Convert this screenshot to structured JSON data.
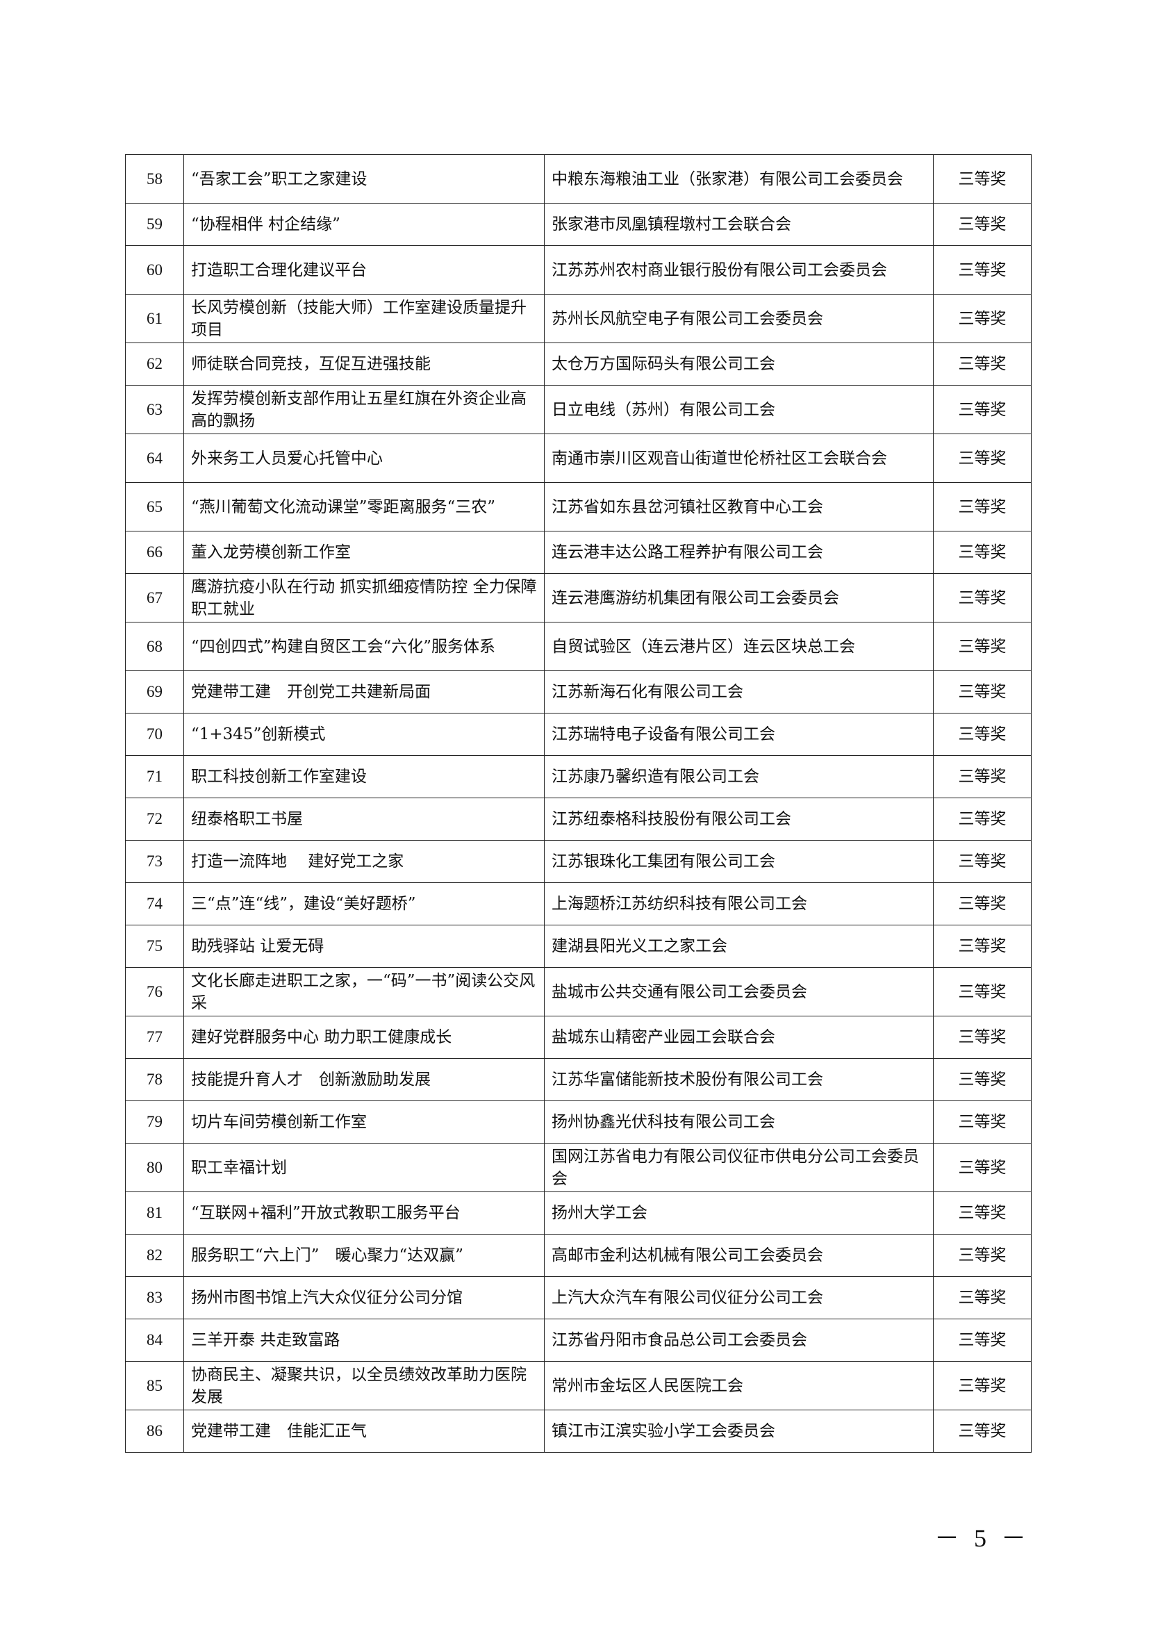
{
  "table": {
    "rows": [
      {
        "no": "58",
        "project": "“吾家工会”职工之家建设",
        "unit": "中粮东海粮油工业（张家港）有限公司工会委员会",
        "award": "三等奖",
        "lines": 2
      },
      {
        "no": "59",
        "project": "“协程相伴 村企结缘”",
        "unit": "张家港市凤凰镇程墩村工会联合会",
        "award": "三等奖",
        "lines": 1
      },
      {
        "no": "60",
        "project": "打造职工合理化建议平台",
        "unit": "江苏苏州农村商业银行股份有限公司工会委员会",
        "award": "三等奖",
        "lines": 2
      },
      {
        "no": "61",
        "project": "长风劳模创新（技能大师）工作室建设质量提升项目",
        "unit": "苏州长风航空电子有限公司工会委员会",
        "award": "三等奖",
        "lines": 2
      },
      {
        "no": "62",
        "project": "师徒联合同竞技，互促互进强技能",
        "unit": "太仓万方国际码头有限公司工会",
        "award": "三等奖",
        "lines": 1
      },
      {
        "no": "63",
        "project": "发挥劳模创新支部作用让五星红旗在外资企业高高的飘扬",
        "unit": "日立电线（苏州）有限公司工会",
        "award": "三等奖",
        "lines": 2
      },
      {
        "no": "64",
        "project": "外来务工人员爱心托管中心",
        "unit": "南通市崇川区观音山街道世伦桥社区工会联合会",
        "award": "三等奖",
        "lines": 2
      },
      {
        "no": "65",
        "project": "“燕川葡萄文化流动课堂”零距离服务“三农”",
        "unit": "江苏省如东县岔河镇社区教育中心工会",
        "award": "三等奖",
        "lines": 2
      },
      {
        "no": "66",
        "project": "董入龙劳模创新工作室",
        "unit": "连云港丰达公路工程养护有限公司工会",
        "award": "三等奖",
        "lines": 1
      },
      {
        "no": "67",
        "project": "鹰游抗疫小队在行动 抓实抓细疫情防控 全力保障职工就业",
        "unit": "连云港鹰游纺机集团有限公司工会委员会",
        "award": "三等奖",
        "lines": 2
      },
      {
        "no": "68",
        "project": "“四创四式”构建自贸区工会“六化”服务体系",
        "unit": "自贸试验区（连云港片区）连云区块总工会",
        "award": "三等奖",
        "lines": 2
      },
      {
        "no": "69",
        "project": "党建带工建　开创党工共建新局面",
        "unit": "江苏新海石化有限公司工会",
        "award": "三等奖",
        "lines": 1
      },
      {
        "no": "70",
        "project": "“1+345”创新模式",
        "unit": "江苏瑞特电子设备有限公司工会",
        "award": "三等奖",
        "lines": 1
      },
      {
        "no": "71",
        "project": "职工科技创新工作室建设",
        "unit": "江苏康乃馨织造有限公司工会",
        "award": "三等奖",
        "lines": 1
      },
      {
        "no": "72",
        "project": "纽泰格职工书屋",
        "unit": "江苏纽泰格科技股份有限公司工会",
        "award": "三等奖",
        "lines": 1
      },
      {
        "no": "73",
        "project": "打造一流阵地　 建好党工之家",
        "unit": "江苏银珠化工集团有限公司工会",
        "award": "三等奖",
        "lines": 1
      },
      {
        "no": "74",
        "project": "三“点”连“线”，建设“美好题桥”",
        "unit": "上海题桥江苏纺织科技有限公司工会",
        "award": "三等奖",
        "lines": 1
      },
      {
        "no": "75",
        "project": "助残驿站 让爱无碍",
        "unit": "建湖县阳光义工之家工会",
        "award": "三等奖",
        "lines": 1
      },
      {
        "no": "76",
        "project": "文化长廊走进职工之家，一“码”一书”阅读公交风采",
        "unit": "盐城市公共交通有限公司工会委员会",
        "award": "三等奖",
        "lines": 2
      },
      {
        "no": "77",
        "project": "建好党群服务中心 助力职工健康成长",
        "unit": "盐城东山精密产业园工会联合会",
        "award": "三等奖",
        "lines": 1
      },
      {
        "no": "78",
        "project": "技能提升育人才　创新激励助发展",
        "unit": "江苏华富储能新技术股份有限公司工会",
        "award": "三等奖",
        "lines": 1
      },
      {
        "no": "79",
        "project": "切片车间劳模创新工作室",
        "unit": "扬州协鑫光伏科技有限公司工会",
        "award": "三等奖",
        "lines": 1
      },
      {
        "no": "80",
        "project": "职工幸福计划",
        "unit": "国网江苏省电力有限公司仪征市供电分公司工会委员会",
        "award": "三等奖",
        "lines": 2
      },
      {
        "no": "81",
        "project": "“互联网+福利”开放式教职工服务平台",
        "unit": "扬州大学工会",
        "award": "三等奖",
        "lines": 1
      },
      {
        "no": "82",
        "project": "服务职工“六上门”　暖心聚力“达双赢”",
        "unit": "高邮市金利达机械有限公司工会委员会",
        "award": "三等奖",
        "lines": 1
      },
      {
        "no": "83",
        "project": "扬州市图书馆上汽大众仪征分公司分馆",
        "unit": "上汽大众汽车有限公司仪征分公司工会",
        "award": "三等奖",
        "lines": 1
      },
      {
        "no": "84",
        "project": "三羊开泰 共走致富路",
        "unit": "江苏省丹阳市食品总公司工会委员会",
        "award": "三等奖",
        "lines": 1
      },
      {
        "no": "85",
        "project": "协商民主、凝聚共识，以全员绩效改革助力医院发展",
        "unit": "常州市金坛区人民医院工会",
        "award": "三等奖",
        "lines": 2
      },
      {
        "no": "86",
        "project": "党建带工建　佳能汇正气",
        "unit": "镇江市江滨实验小学工会委员会",
        "award": "三等奖",
        "lines": 1
      }
    ]
  },
  "footer": {
    "page_number": "－ 5 －"
  }
}
